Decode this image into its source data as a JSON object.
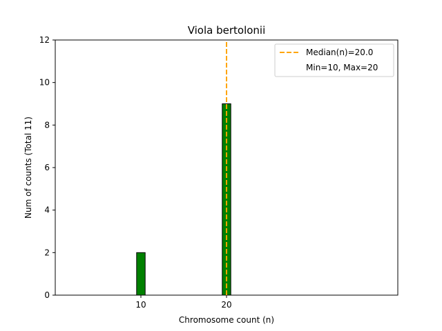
{
  "chart_data": {
    "type": "bar",
    "title": "Viola bertolonii",
    "xlabel": "Chromosome count (n)",
    "ylabel": "Num of counts     (Total 11)",
    "xlim": [
      0,
      40
    ],
    "ylim": [
      0,
      12
    ],
    "x_ticks": [
      10,
      20
    ],
    "y_ticks": [
      0,
      2,
      4,
      6,
      8,
      10,
      12
    ],
    "bars": [
      {
        "x": 10,
        "value": 2
      },
      {
        "x": 20,
        "value": 9
      }
    ],
    "bar_color": "#008000",
    "median_line": {
      "x": 20,
      "color": "#FFA500"
    },
    "legend": {
      "position": "top-right",
      "entries": [
        {
          "label": "Median(n)=20.0",
          "style": "dashed-line",
          "color": "#FFA500"
        },
        {
          "label": "Min=10, Max=20",
          "style": "none"
        }
      ]
    }
  }
}
